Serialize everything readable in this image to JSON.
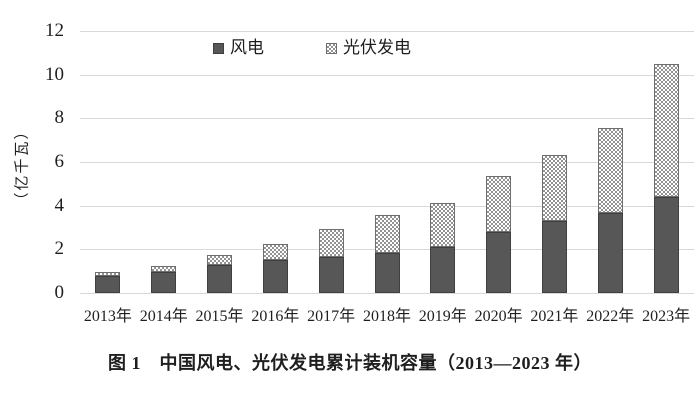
{
  "chart_data": {
    "type": "bar",
    "stacked": true,
    "title": "图 1　中国风电、光伏发电累计装机容量（2013—2023 年）",
    "ylabel": "（亿千瓦）",
    "ylim": [
      0,
      12
    ],
    "yticks": [
      0,
      2,
      4,
      6,
      8,
      10,
      12
    ],
    "grid": true,
    "legend_position": "top-center-inside",
    "categories": [
      "2013年",
      "2014年",
      "2015年",
      "2016年",
      "2017年",
      "2018年",
      "2019年",
      "2020年",
      "2021年",
      "2022年",
      "2023年"
    ],
    "series": [
      {
        "name": "风电",
        "style": "solid-dark-gray",
        "values": [
          0.76,
          0.96,
          1.29,
          1.49,
          1.64,
          1.84,
          2.1,
          2.81,
          3.28,
          3.65,
          4.41
        ]
      },
      {
        "name": "光伏发电",
        "style": "dotted-pattern",
        "values": [
          0.19,
          0.28,
          0.43,
          0.77,
          1.3,
          1.74,
          2.04,
          2.53,
          3.06,
          3.93,
          6.09
        ]
      }
    ],
    "totals": [
      0.95,
      1.24,
      1.72,
      2.26,
      2.94,
      3.58,
      4.14,
      5.34,
      6.34,
      7.58,
      10.5
    ],
    "colors": {
      "wind_fill": "#575757",
      "wind_border": "#3f3f3f",
      "solar_dot": "#929292",
      "solar_bg": "#ffffff",
      "solar_border": "#6e6e6e",
      "gridline": "#d9d9d9",
      "text": "#1f1f1f"
    }
  }
}
